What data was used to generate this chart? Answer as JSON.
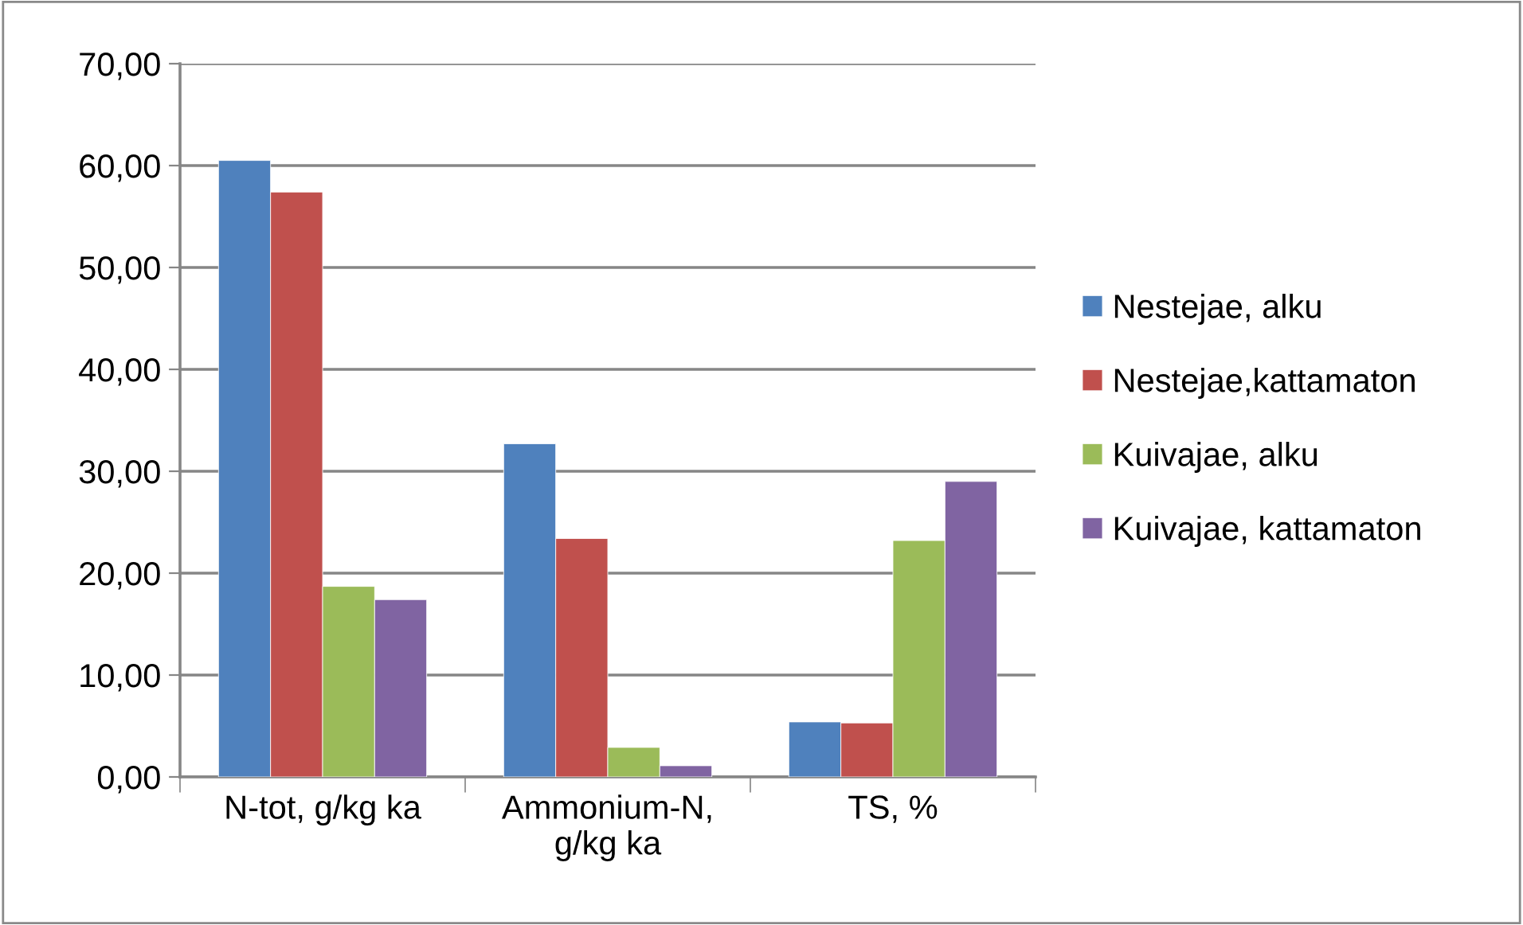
{
  "chart_data": {
    "type": "bar",
    "categories": [
      "N-tot, g/kg ka",
      "Ammonium-N,\ng/kg ka",
      "TS, %"
    ],
    "series": [
      {
        "name": "Nestejae, alku",
        "color": "#4f81bd",
        "values": [
          60.5,
          32.7,
          5.4
        ]
      },
      {
        "name": "Nestejae,kattamaton",
        "color": "#c0504d",
        "values": [
          57.4,
          23.4,
          5.3
        ]
      },
      {
        "name": "Kuivajae, alku",
        "color": "#9bbb59",
        "values": [
          18.7,
          2.9,
          23.2
        ]
      },
      {
        "name": "Kuivajae, kattamaton",
        "color": "#8064a2",
        "values": [
          17.4,
          1.1,
          29.0
        ]
      }
    ],
    "ylim": [
      0,
      70
    ],
    "yticks": [
      {
        "value": 0,
        "label": "0,00"
      },
      {
        "value": 10,
        "label": "10,00"
      },
      {
        "value": 20,
        "label": "20,00"
      },
      {
        "value": 30,
        "label": "30,00"
      },
      {
        "value": 40,
        "label": "40,00"
      },
      {
        "value": 50,
        "label": "50,00"
      },
      {
        "value": 60,
        "label": "60,00"
      },
      {
        "value": 70,
        "label": "70,00"
      }
    ],
    "grid": "y",
    "legend": "right"
  }
}
